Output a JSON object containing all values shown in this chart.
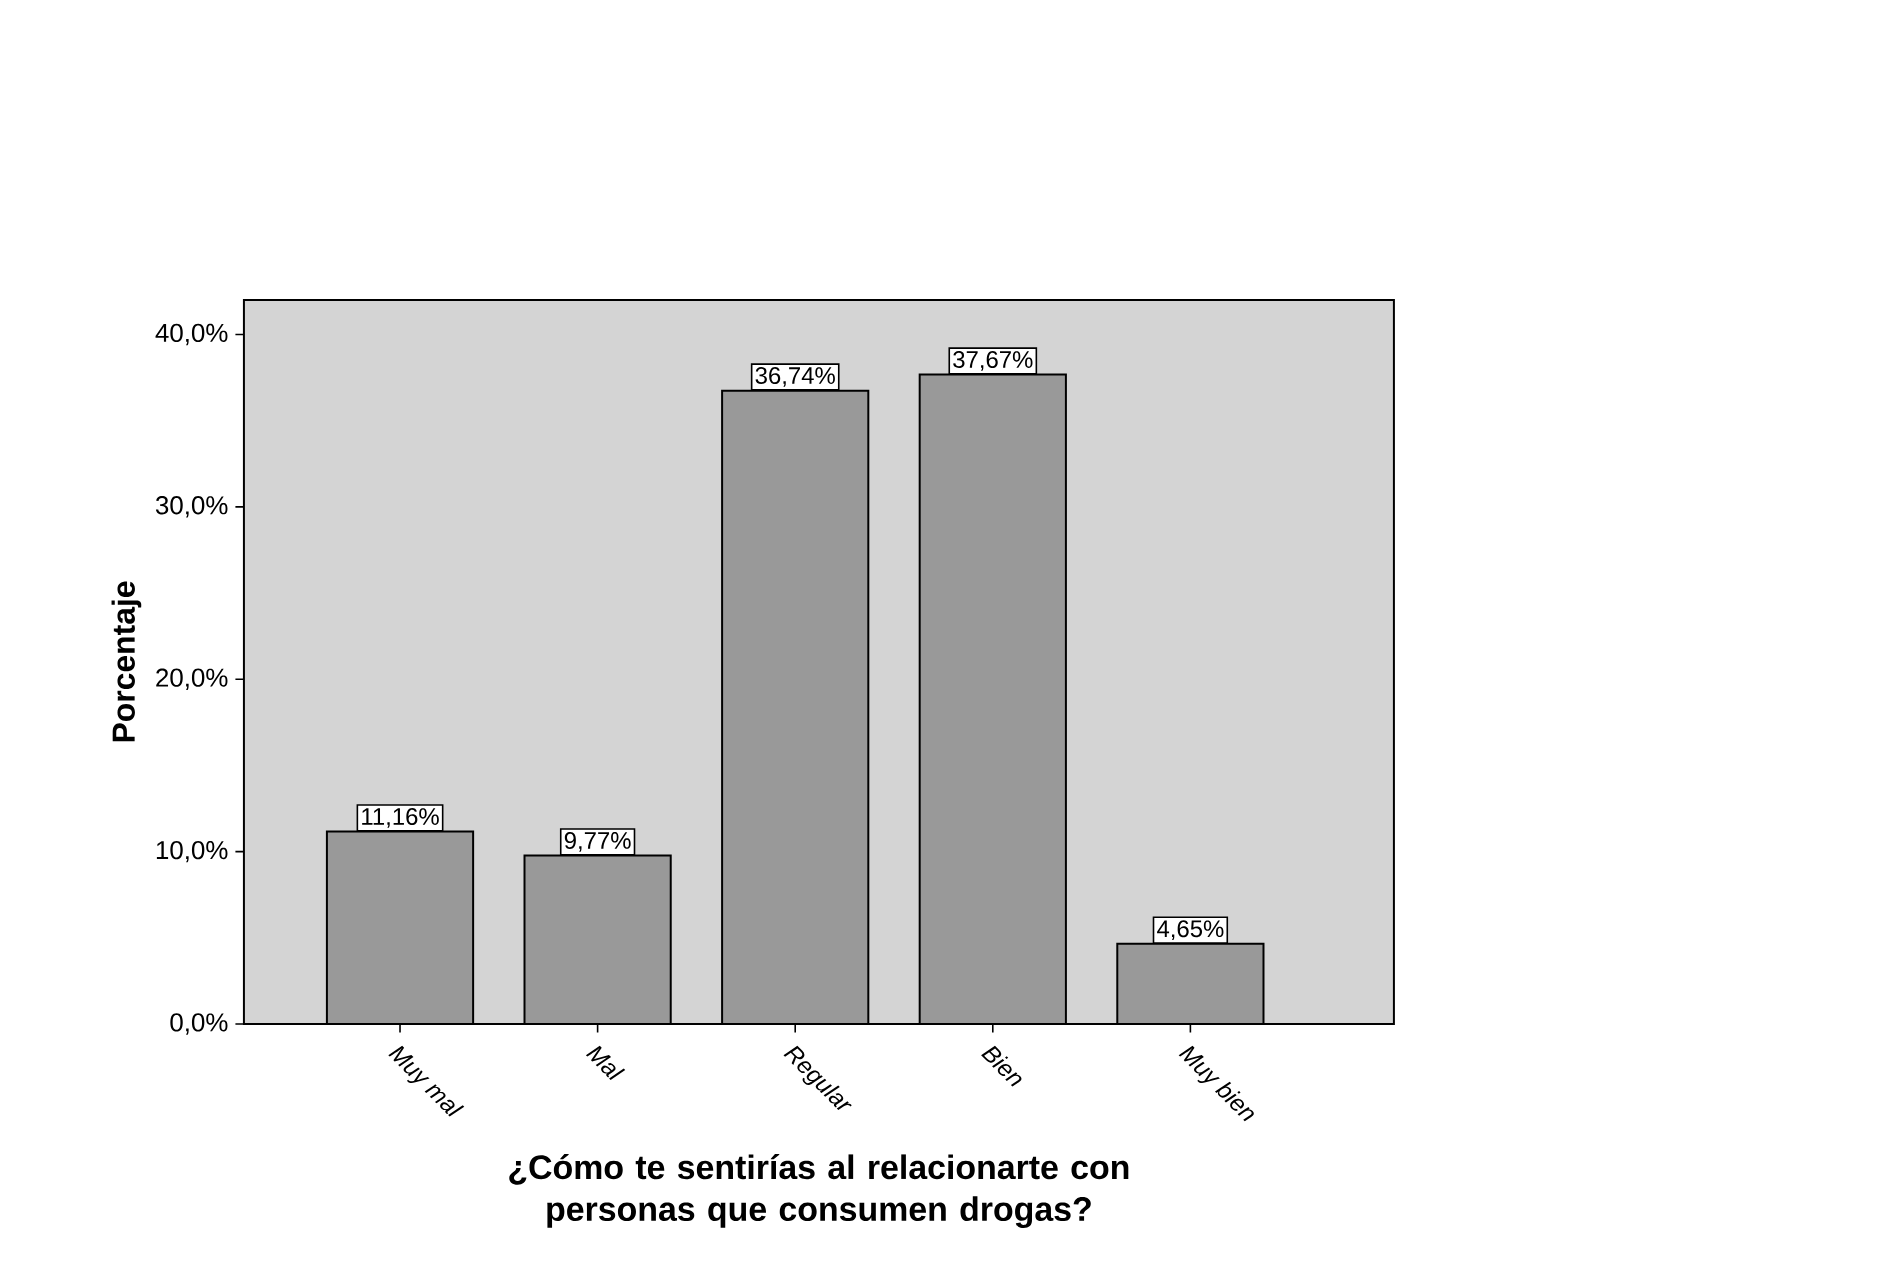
{
  "chart_data": {
    "type": "bar",
    "xlabel": "¿Cómo te sentirías al relacionarte con personas que consumen drogas?",
    "ylabel": "Porcentaje",
    "categories": [
      "Muy mal",
      "Mal",
      "Regular",
      "Bien",
      "Muy bien"
    ],
    "values": [
      11.16,
      9.77,
      36.74,
      37.67,
      4.65
    ],
    "value_labels": [
      "11,16%",
      "9,77%",
      "36,74%",
      "37,67%",
      "4,65%"
    ],
    "color": "#999999",
    "ylim": [
      0,
      42
    ],
    "yticks": [
      {
        "value": 0,
        "label": "0,0%"
      },
      {
        "value": 10,
        "label": "10,0%"
      },
      {
        "value": 20,
        "label": "20,0%"
      },
      {
        "value": 30,
        "label": "30,0%"
      },
      {
        "value": 40,
        "label": "40,0%"
      }
    ],
    "grid": false
  }
}
